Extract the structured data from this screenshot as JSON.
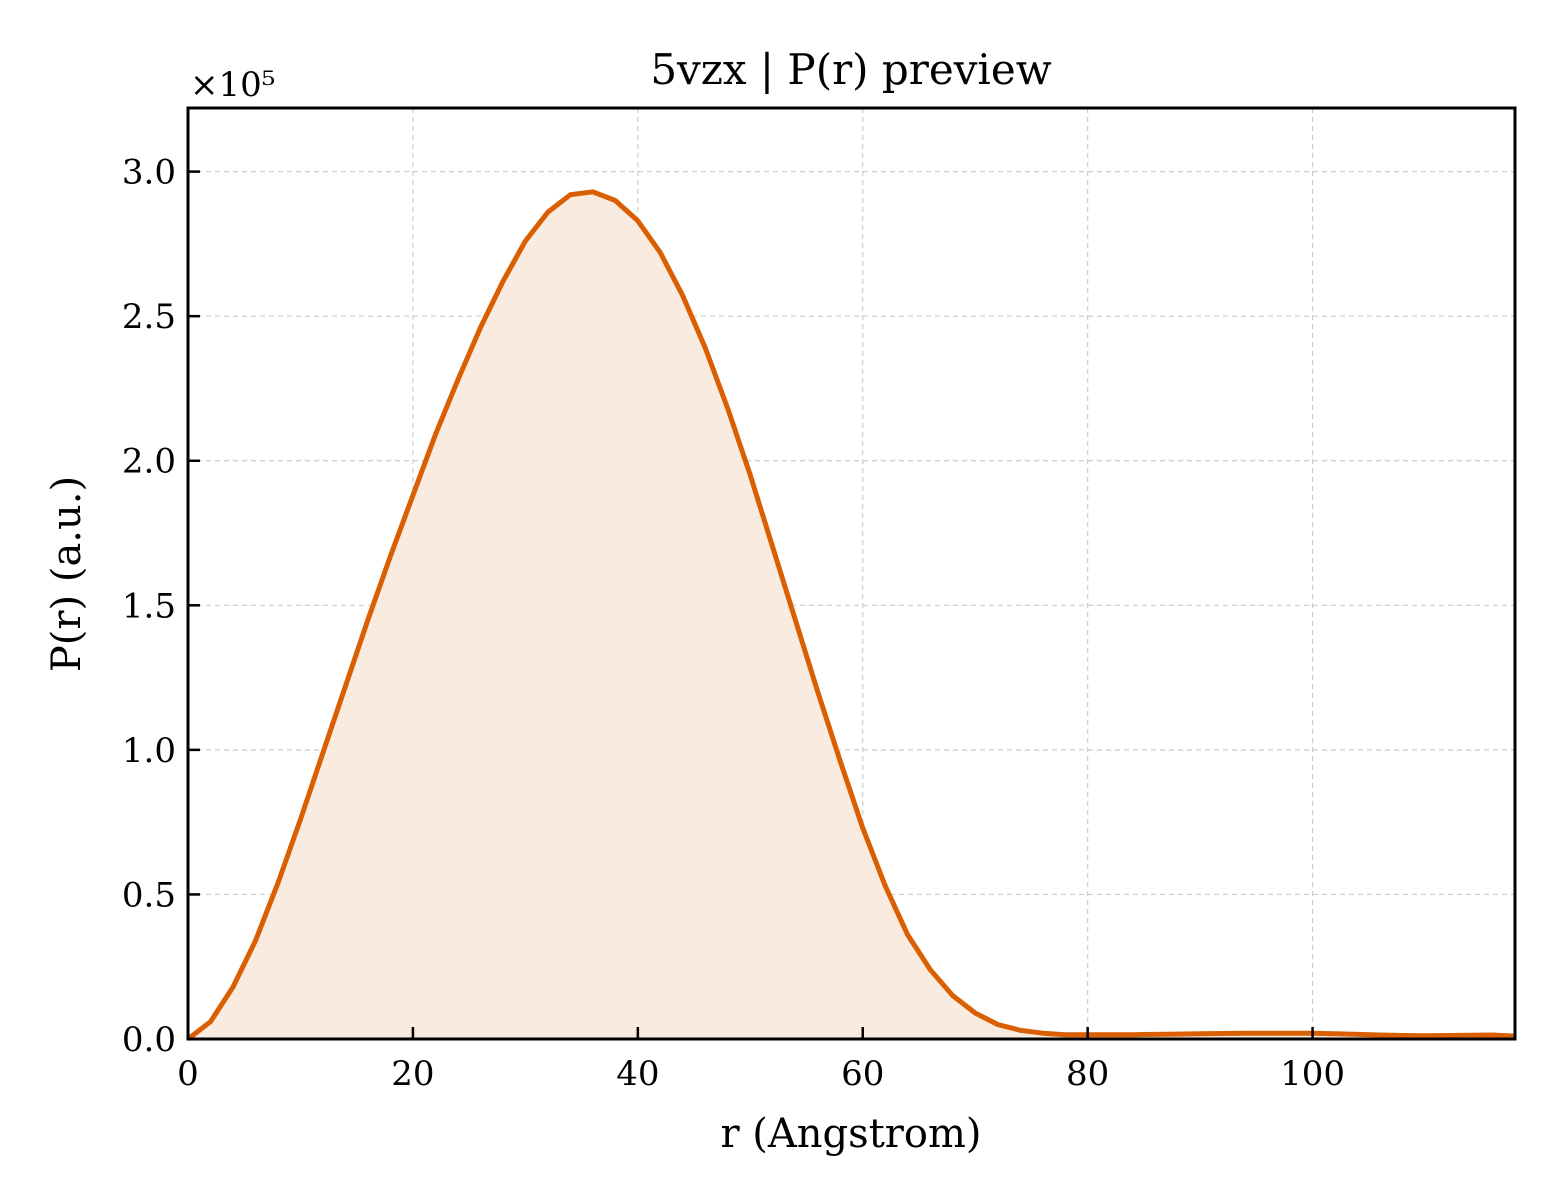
{
  "chart_data": {
    "type": "area",
    "title": "5vzx | P(r) preview",
    "xlabel": "r (Angstrom)",
    "ylabel": "P(r) (a.u.)",
    "y_multiplier_label": "×10⁵",
    "xlim": [
      0,
      118
    ],
    "ylim": [
      0,
      3.22
    ],
    "y_scale_factor": 100000,
    "xticks": [
      0,
      20,
      40,
      60,
      80,
      100
    ],
    "xtick_labels": [
      "0",
      "20",
      "40",
      "60",
      "80",
      "100"
    ],
    "yticks": [
      0.0,
      0.5,
      1.0,
      1.5,
      2.0,
      2.5,
      3.0
    ],
    "ytick_labels": [
      "0.0",
      "0.5",
      "1.0",
      "1.5",
      "2.0",
      "2.5",
      "3.0"
    ],
    "grid": true,
    "line_color": "#d95f02",
    "fill_color": "#f9ebe0",
    "series": [
      {
        "x": [
          0,
          2,
          4,
          6,
          8,
          10,
          12,
          14,
          16,
          18,
          20,
          22,
          24,
          26,
          28,
          30,
          32,
          34,
          36,
          38,
          40,
          42,
          44,
          46,
          48,
          50,
          52,
          54,
          56,
          58,
          60,
          62,
          64,
          66,
          68,
          70,
          72,
          74,
          76,
          78,
          80,
          82,
          84,
          86,
          88,
          90,
          92,
          94,
          96,
          98,
          100,
          102,
          104,
          106,
          108,
          110,
          112,
          114,
          116,
          118
        ],
        "y": [
          0.0,
          0.06,
          0.18,
          0.34,
          0.54,
          0.76,
          0.99,
          1.22,
          1.45,
          1.67,
          1.88,
          2.09,
          2.28,
          2.46,
          2.62,
          2.76,
          2.86,
          2.92,
          2.93,
          2.9,
          2.83,
          2.72,
          2.57,
          2.39,
          2.18,
          1.95,
          1.7,
          1.45,
          1.2,
          0.96,
          0.73,
          0.53,
          0.36,
          0.24,
          0.15,
          0.09,
          0.05,
          0.03,
          0.02,
          0.015,
          0.015,
          0.015,
          0.015,
          0.016,
          0.017,
          0.018,
          0.019,
          0.02,
          0.02,
          0.02,
          0.02,
          0.018,
          0.016,
          0.014,
          0.012,
          0.011,
          0.012,
          0.013,
          0.014,
          0.01
        ]
      }
    ]
  }
}
